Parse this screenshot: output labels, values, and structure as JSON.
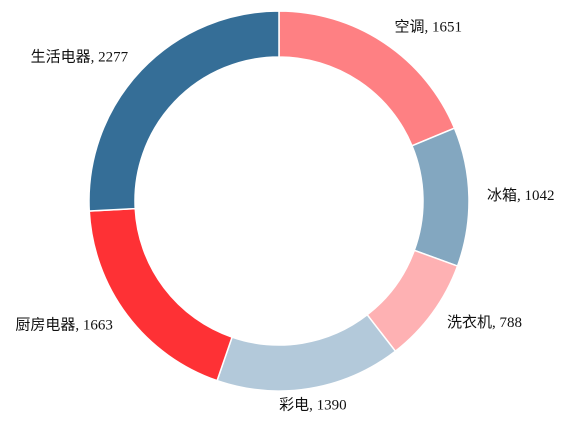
{
  "chart_data": {
    "type": "donut",
    "values": [
      1651,
      1042,
      788,
      1390,
      1663,
      2277
    ],
    "value_labels": [
      "空调, 1651",
      "冰箱, 1042",
      "洗衣机, 788",
      "彩电, 1390",
      "厨房电器, 1663",
      "生活电器, 2277"
    ],
    "colors": [
      "#fe8083",
      "#83a7c0",
      "#feb1b3",
      "#b3c9da",
      "#fe3135",
      "#356e97"
    ]
  }
}
